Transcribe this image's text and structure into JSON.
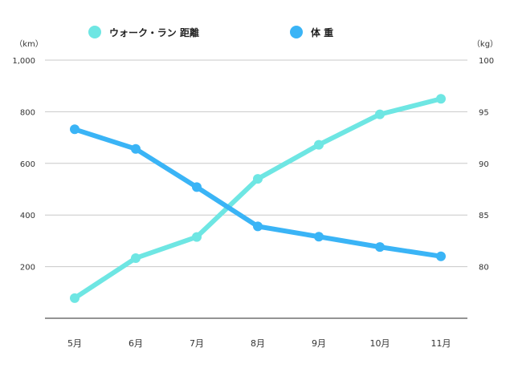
{
  "chart_data": {
    "type": "line",
    "categories": [
      "5月",
      "6月",
      "7月",
      "8月",
      "9月",
      "10月",
      "11月"
    ],
    "series": [
      {
        "name": "ウォーク・ラン 距離",
        "axis": "left",
        "values": [
          78,
          233,
          315,
          540,
          672,
          790,
          850
        ]
      },
      {
        "name": "体 重",
        "axis": "right",
        "values": [
          93.3,
          91.4,
          87.7,
          83.9,
          82.9,
          81.9,
          81.0
        ]
      }
    ],
    "left_axis": {
      "unit": "（km）",
      "ylim": [
        0,
        1000
      ],
      "ticks": [
        200,
        400,
        600,
        800,
        1000
      ],
      "tick_labels": [
        "200",
        "400",
        "600",
        "800",
        "1,000"
      ]
    },
    "right_axis": {
      "unit": "（kg）",
      "ylim": [
        75,
        100
      ],
      "ticks": [
        80,
        85,
        90,
        95,
        100
      ],
      "tick_labels": [
        "80",
        "85",
        "90",
        "95",
        "100"
      ]
    },
    "grid": true,
    "legend_position": "top",
    "colors": {
      "distance": "#6ee6e3",
      "weight": "#3ab4f6",
      "grid": "#c8c8c8",
      "axis": "#555555",
      "text": "#333333"
    }
  }
}
